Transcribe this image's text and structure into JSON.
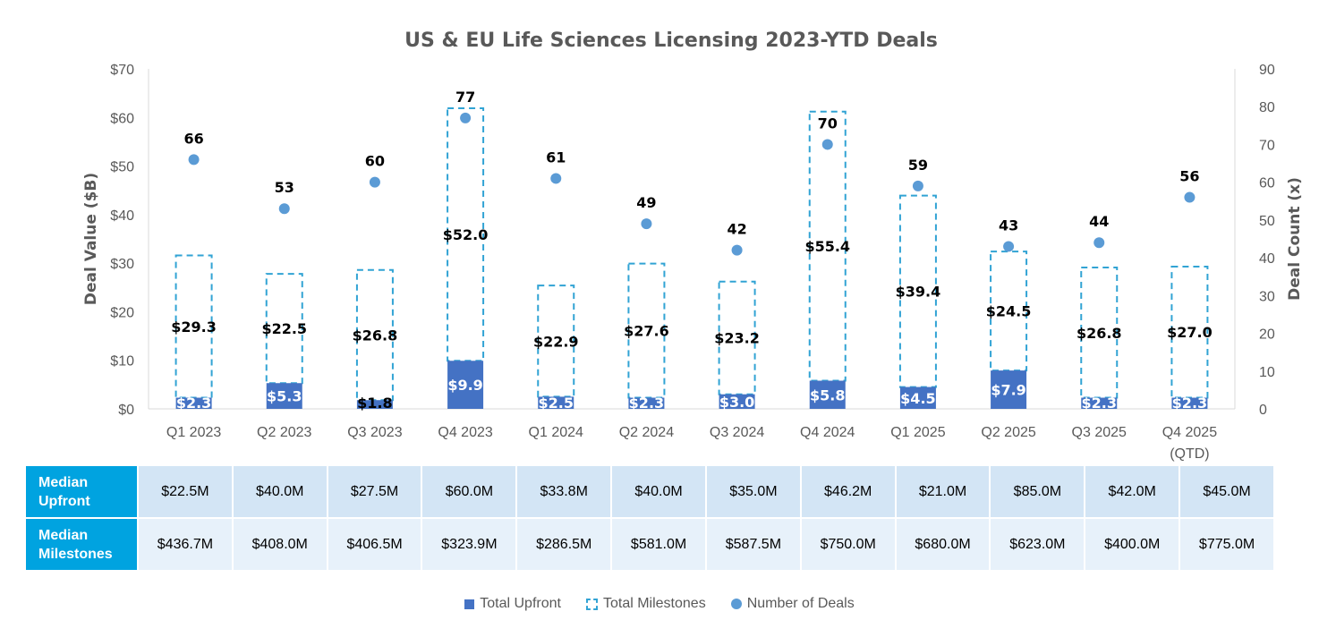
{
  "chart_data": {
    "type": "bar",
    "title": "US & EU Life Sciences Licensing 2023-YTD Deals",
    "ylabel": "Deal Value ($B)",
    "y2label": "Deal Count (x)",
    "ylim": [
      0,
      70
    ],
    "y2lim": [
      0,
      90
    ],
    "yticks": [
      "$0",
      "$10",
      "$20",
      "$30",
      "$40",
      "$50",
      "$60",
      "$70"
    ],
    "y2ticks": [
      "0",
      "10",
      "20",
      "30",
      "40",
      "50",
      "60",
      "70",
      "80",
      "90"
    ],
    "categories": [
      "Q1 2023",
      "Q2 2023",
      "Q3 2023",
      "Q4 2023",
      "Q1 2024",
      "Q2 2024",
      "Q3 2024",
      "Q4 2024",
      "Q1 2025",
      "Q2 2025",
      "Q3 2025",
      "Q4 2025"
    ],
    "category_sublabels": [
      "",
      "",
      "",
      "",
      "",
      "",
      "",
      "",
      "",
      "",
      "",
      "(QTD)"
    ],
    "series": [
      {
        "name": "Total Upfront",
        "values": [
          2.3,
          5.3,
          1.8,
          9.9,
          2.5,
          2.3,
          3.0,
          5.8,
          4.5,
          7.9,
          2.3,
          2.3
        ],
        "labels": [
          "$2.3",
          "$5.3",
          "$1.8",
          "$9.9",
          "$2.5",
          "$2.3",
          "$3.0",
          "$5.8",
          "$4.5",
          "$7.9",
          "$2.3",
          "$2.3"
        ]
      },
      {
        "name": "Total Milestones",
        "values": [
          29.3,
          22.5,
          26.8,
          52.0,
          22.9,
          27.6,
          23.2,
          55.4,
          39.4,
          24.5,
          26.8,
          27.0
        ],
        "labels": [
          "$29.3",
          "$22.5",
          "$26.8",
          "$52.0",
          "$22.9",
          "$27.6",
          "$23.2",
          "$55.4",
          "$39.4",
          "$24.5",
          "$26.8",
          "$27.0"
        ]
      },
      {
        "name": "Number of Deals",
        "values": [
          66,
          53,
          60,
          77,
          61,
          49,
          42,
          70,
          59,
          43,
          44,
          56
        ]
      }
    ],
    "legend_position": "bottom",
    "table": {
      "rows": [
        {
          "label_line1": "Median",
          "label_line2": "Upfront",
          "values": [
            "$22.5M",
            "$40.0M",
            "$27.5M",
            "$60.0M",
            "$33.8M",
            "$40.0M",
            "$35.0M",
            "$46.2M",
            "$21.0M",
            "$85.0M",
            "$42.0M",
            "$45.0M"
          ]
        },
        {
          "label_line1": "Median",
          "label_line2": "Milestones",
          "values": [
            "$436.7M",
            "$408.0M",
            "$406.5M",
            "$323.9M",
            "$286.5M",
            "$581.0M",
            "$587.5M",
            "$750.0M",
            "$680.0M",
            "$623.0M",
            "$400.0M",
            "$775.0M"
          ]
        }
      ]
    }
  },
  "colors": {
    "upfront": "#4472c4",
    "milestones_border": "#31a3d4",
    "deals_dot": "#5b9bd5",
    "table_header": "#00a3e0"
  },
  "legend": {
    "upfront": "Total Upfront",
    "milestones": "Total Milestones",
    "deals": "Number of Deals"
  }
}
